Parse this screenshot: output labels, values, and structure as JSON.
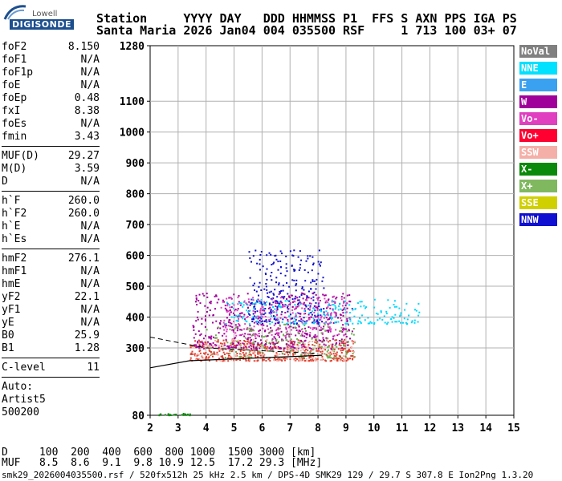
{
  "logo": {
    "line1": "Lowell",
    "line2": "DIGISONDE"
  },
  "header": {
    "row1": "Station     YYYY DAY   DDD HHMMSS P1  FFS S AXN PPS IGA PS",
    "row2": "Santa Maria 2026 Jan04 004 035500 RSF     1 713 100 03+ 07"
  },
  "params": {
    "group1": [
      {
        "k": "foF2",
        "v": "8.150"
      },
      {
        "k": "foF1",
        "v": "N/A"
      },
      {
        "k": "foF1p",
        "v": "N/A"
      },
      {
        "k": "foE",
        "v": "N/A"
      },
      {
        "k": "foEp",
        "v": "0.48"
      },
      {
        "k": "fxI",
        "v": "8.38"
      },
      {
        "k": "foEs",
        "v": "N/A"
      },
      {
        "k": "fmin",
        "v": "3.43"
      }
    ],
    "group2": [
      {
        "k": "MUF(D)",
        "v": "29.27"
      },
      {
        "k": "M(D)",
        "v": "3.59"
      },
      {
        "k": "D",
        "v": "N/A"
      }
    ],
    "group3": [
      {
        "k": "h`F",
        "v": "260.0"
      },
      {
        "k": "h`F2",
        "v": "260.0"
      },
      {
        "k": "h`E",
        "v": "N/A"
      },
      {
        "k": "h`Es",
        "v": "N/A"
      }
    ],
    "group4": [
      {
        "k": "hmF2",
        "v": "276.1"
      },
      {
        "k": "hmF1",
        "v": "N/A"
      },
      {
        "k": "hmE",
        "v": "N/A"
      },
      {
        "k": "yF2",
        "v": "22.1"
      },
      {
        "k": "yF1",
        "v": "N/A"
      },
      {
        "k": "yE",
        "v": "N/A"
      },
      {
        "k": "B0",
        "v": "25.9"
      },
      {
        "k": "B1",
        "v": "1.28"
      }
    ],
    "clevel": {
      "k": "C-level",
      "v": "11"
    },
    "auto": {
      "l1": "Auto:",
      "l2": "Artist5",
      "l3": "500200"
    }
  },
  "legend": [
    {
      "label": "NoVal",
      "bg": "#808080",
      "fg": "#ffffff"
    },
    {
      "label": "NNE",
      "bg": "#00e0ff",
      "fg": "#ffffff"
    },
    {
      "label": "E",
      "bg": "#3aa0f0",
      "fg": "#ffffff"
    },
    {
      "label": "W",
      "bg": "#a0009a",
      "fg": "#ffffff"
    },
    {
      "label": "Vo-",
      "bg": "#e040c0",
      "fg": "#ffffff"
    },
    {
      "label": "Vo+",
      "bg": "#ff0030",
      "fg": "#ffffff"
    },
    {
      "label": "SSW",
      "bg": "#f4b0a8",
      "fg": "#ffffff"
    },
    {
      "label": "X-",
      "bg": "#0a8a0a",
      "fg": "#ffffff"
    },
    {
      "label": "X+",
      "bg": "#80b860",
      "fg": "#ffffff"
    },
    {
      "label": "SSE",
      "bg": "#d0d000",
      "fg": "#ffffff"
    },
    {
      "label": "NNW",
      "bg": "#1010d0",
      "fg": "#ffffff"
    }
  ],
  "footer": {
    "d_row": "D     100  200  400  600  800 1000  1500 3000 [km]",
    "muf_row": "MUF   8.5  8.6  9.1  9.8 10.9 12.5  17.2 29.3 [MHz]",
    "info": "smk29_2026004035500.rsf / 520fx512h 25 kHz 2.5 km / DPS-4D SMK29 129 / 29.7 S 307.8 E Ion2Png 1.3.20"
  },
  "chart_data": {
    "type": "scatter",
    "title": "",
    "xlabel": "",
    "ylabel": "",
    "xlim": [
      2,
      15
    ],
    "ylim": [
      80,
      1280
    ],
    "x_ticks": [
      2,
      3,
      4,
      5,
      6,
      7,
      8,
      9,
      10,
      11,
      12,
      13,
      14,
      15
    ],
    "y_ticks": [
      80,
      300,
      400,
      500,
      600,
      700,
      800,
      900,
      1000,
      1100,
      1280
    ],
    "clusters": [
      {
        "name": "F2 trace",
        "color": "#e04030",
        "x_range": [
          3.4,
          9.3
        ],
        "y_range": [
          260,
          330
        ],
        "n": 450
      },
      {
        "name": "W echoes",
        "color": "#a0009a",
        "x_range": [
          3.5,
          9.2
        ],
        "y_range": [
          300,
          480
        ],
        "n": 550
      },
      {
        "name": "NNW echoes",
        "color": "#1010d0",
        "x_range": [
          5.5,
          8.2
        ],
        "y_range": [
          380,
          620
        ],
        "n": 260
      },
      {
        "name": "NNE echoes",
        "color": "#00d8ff",
        "x_range": [
          4.6,
          11.6
        ],
        "y_range": [
          380,
          460
        ],
        "n": 220
      },
      {
        "name": "Vo- echoes",
        "color": "#e040c0",
        "x_range": [
          4.5,
          9.0
        ],
        "y_range": [
          340,
          470
        ],
        "n": 200
      },
      {
        "name": "X+ echoes",
        "color": "#70b050",
        "x_range": [
          4.0,
          9.3
        ],
        "y_range": [
          270,
          380
        ],
        "n": 160
      },
      {
        "name": "SSW echoes",
        "color": "#f4b0a8",
        "x_range": [
          3.6,
          9.3
        ],
        "y_range": [
          260,
          330
        ],
        "n": 140
      },
      {
        "name": "X- echoes",
        "color": "#0a8a0a",
        "x_range": [
          2.1,
          3.5
        ],
        "y_range": [
          82,
          88
        ],
        "n": 25
      }
    ],
    "profile_curve": [
      [
        2.0,
        235
      ],
      [
        3.4,
        258
      ],
      [
        8.15,
        276
      ]
    ],
    "profile_dashed": [
      [
        2.0,
        335
      ],
      [
        4.0,
        300
      ],
      [
        8.0,
        282
      ]
    ]
  }
}
